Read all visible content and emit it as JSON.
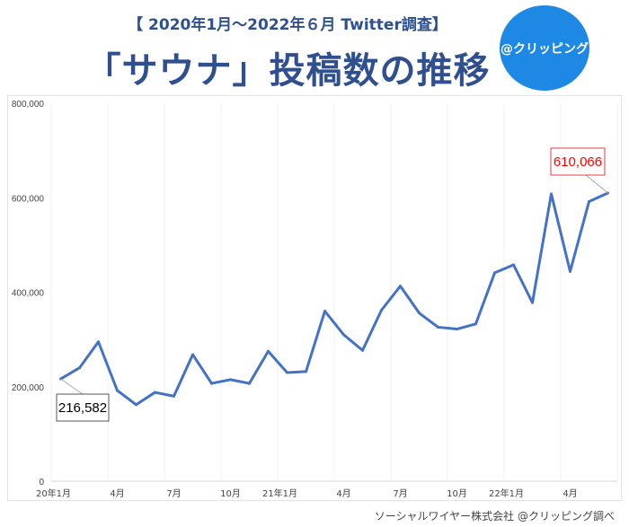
{
  "header": {
    "subtitle": "【 2020年1月～2022年６月 Twitter調査】",
    "title": "「サウナ」投稿数の推移",
    "logo": "@クリッピング"
  },
  "footer": {
    "source": "ソーシャルワイヤー株式会社 @クリッピング調べ"
  },
  "chart_data": {
    "type": "line",
    "title": "「サウナ」投稿数の推移",
    "xlabel": "",
    "ylabel": "",
    "ylim": [
      0,
      800000
    ],
    "yticks": [
      "0",
      "200,000",
      "400,000",
      "600,000",
      "800,000"
    ],
    "yticks_values": [
      0,
      200000,
      400000,
      600000,
      800000
    ],
    "x": [
      "2020-01",
      "2020-02",
      "2020-03",
      "2020-04",
      "2020-05",
      "2020-06",
      "2020-07",
      "2020-08",
      "2020-09",
      "2020-10",
      "2020-11",
      "2020-12",
      "2021-01",
      "2021-02",
      "2021-03",
      "2021-04",
      "2021-05",
      "2021-06",
      "2021-07",
      "2021-08",
      "2021-09",
      "2021-10",
      "2021-11",
      "2021-12",
      "2022-01",
      "2022-02",
      "2022-03",
      "2022-04",
      "2022-05",
      "2022-06"
    ],
    "xtick_labels": [
      {
        "index": 0,
        "label": "20年1月"
      },
      {
        "index": 3,
        "label": "4月"
      },
      {
        "index": 6,
        "label": "7月"
      },
      {
        "index": 9,
        "label": "10月"
      },
      {
        "index": 12,
        "label": "21年1月"
      },
      {
        "index": 15,
        "label": "4月"
      },
      {
        "index": 18,
        "label": "7月"
      },
      {
        "index": 21,
        "label": "10月"
      },
      {
        "index": 24,
        "label": "22年1月"
      },
      {
        "index": 27,
        "label": "4月"
      }
    ],
    "series": [
      {
        "values": [
          216582,
          240000,
          295000,
          192000,
          162000,
          188000,
          180000,
          268000,
          207000,
          215000,
          207000,
          275000,
          230000,
          232000,
          360000,
          310000,
          277000,
          362000,
          413000,
          356000,
          326000,
          322000,
          333000,
          441000,
          458000,
          378000,
          608000,
          444000,
          592000,
          610066
        ],
        "color": "#4472c4"
      }
    ],
    "annotations": [
      {
        "index": 0,
        "label": "216,582",
        "color": "#000000"
      },
      {
        "index": 29,
        "label": "610,066",
        "color": "#ff0000"
      }
    ],
    "grid": "vertical every 3 months",
    "legend": "none"
  }
}
